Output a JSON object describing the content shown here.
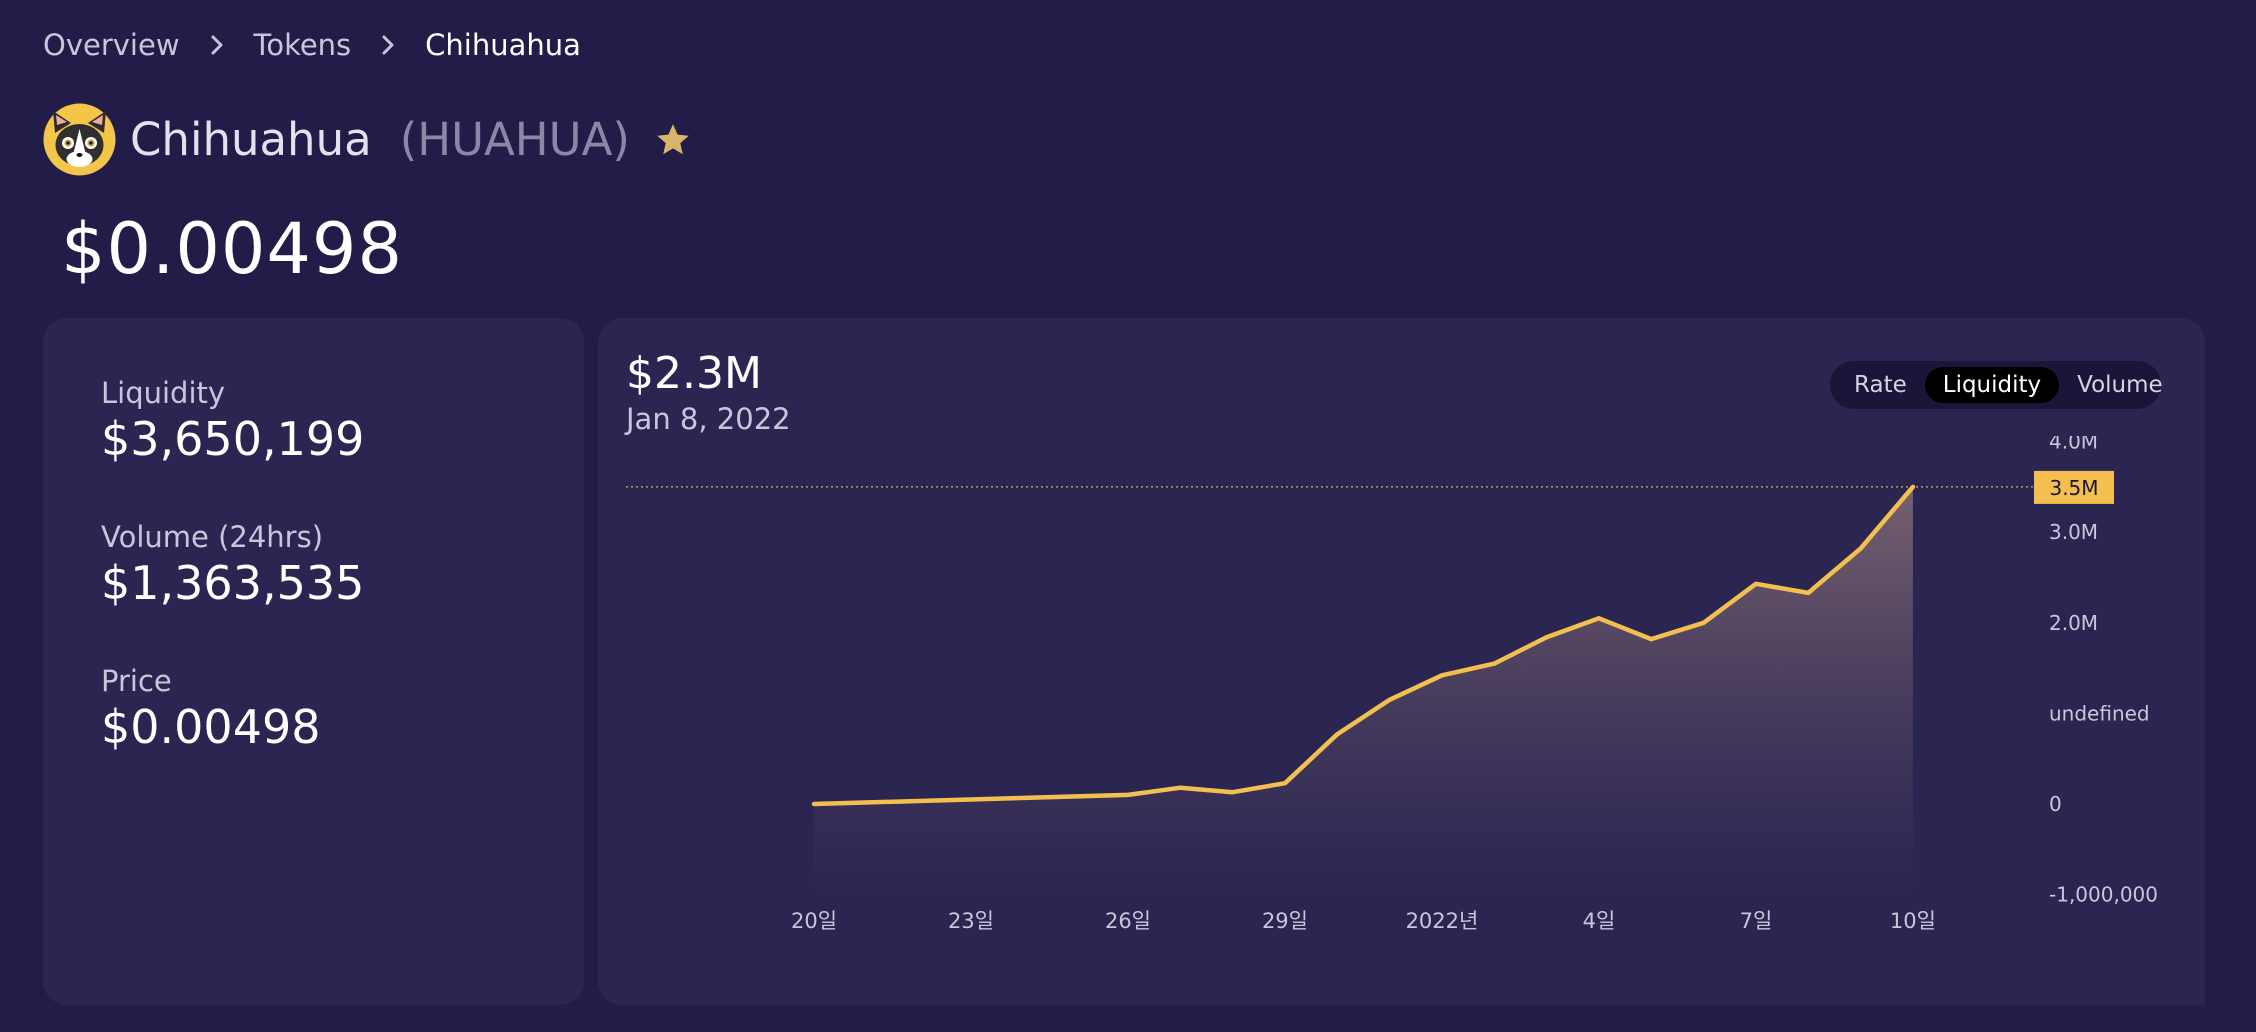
{
  "breadcrumb": {
    "items": [
      "Overview",
      "Tokens",
      "Chihuahua"
    ]
  },
  "token": {
    "name": "Chihuahua",
    "symbol": "(HUAHUA)",
    "price": "$0.00498"
  },
  "stats": {
    "liquidity_label": "Liquidity",
    "liquidity_value": "$3,650,199",
    "volume_label": "Volume (24hrs)",
    "volume_value": "$1,363,535",
    "price_label": "Price",
    "price_value": "$0.00498"
  },
  "chart_header": {
    "value": "$2.3M",
    "date": "Jan 8, 2022"
  },
  "toggle": {
    "options": [
      "Rate",
      "Liquidity",
      "Volume"
    ],
    "active": "Liquidity"
  },
  "colors": {
    "background": "#221c48",
    "card": "#2b2552",
    "accent": "#f3c050",
    "star": "#d8b56a"
  },
  "chart_data": {
    "type": "area",
    "x_ticks": [
      "20일",
      "23일",
      "26일",
      "29일",
      "2022년",
      "4일",
      "7일",
      "10일"
    ],
    "y_ticks": [
      "4.0M",
      "3.0M",
      "2.0M",
      "undefined",
      "0",
      "-1,000,000"
    ],
    "y_tick_values": [
      4000000,
      3000000,
      2000000,
      1000000,
      0,
      -1000000
    ],
    "ylim": [
      -1000000,
      4000000
    ],
    "crosshair_label": "3.5M",
    "crosshair_value": 3500000,
    "points": [
      {
        "day": 0,
        "value": 0
      },
      {
        "day": 6,
        "value": 100000
      },
      {
        "day": 7,
        "value": 180000
      },
      {
        "day": 8,
        "value": 130000
      },
      {
        "day": 9,
        "value": 230000
      },
      {
        "day": 10,
        "value": 770000
      },
      {
        "day": 11,
        "value": 1150000
      },
      {
        "day": 12,
        "value": 1420000
      },
      {
        "day": 13,
        "value": 1550000
      },
      {
        "day": 14,
        "value": 1840000
      },
      {
        "day": 15,
        "value": 2050000
      },
      {
        "day": 16,
        "value": 1820000
      },
      {
        "day": 17,
        "value": 2000000
      },
      {
        "day": 18,
        "value": 2430000
      },
      {
        "day": 19,
        "value": 2330000
      },
      {
        "day": 20,
        "value": 2820000
      },
      {
        "day": 21,
        "value": 3500000
      }
    ]
  }
}
